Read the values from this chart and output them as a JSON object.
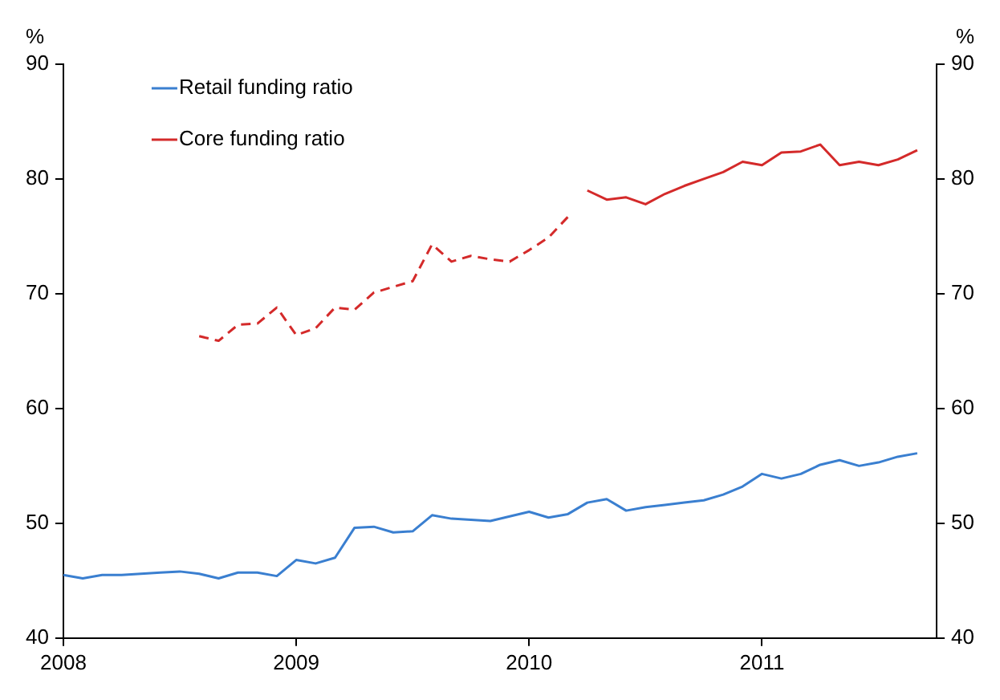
{
  "chart_data": {
    "type": "line",
    "ylabel": "%",
    "y2label": "%",
    "xlim": [
      "2008-01",
      "2011-10"
    ],
    "xticks": [
      "2008",
      "2009",
      "2010",
      "2011"
    ],
    "ylim": [
      40,
      90
    ],
    "yticks": [
      40,
      50,
      60,
      70,
      80,
      90
    ],
    "y2lim": [
      40,
      90
    ],
    "y2ticks": [
      40,
      50,
      60,
      70,
      80,
      90
    ],
    "grid": false,
    "legend": "top left",
    "marker": "none",
    "series": [
      {
        "name": "Retail funding ratio",
        "color": "#3a7fd0",
        "line_style": "solid",
        "x": [
          "2008-01",
          "2008-02",
          "2008-03",
          "2008-04",
          "2008-05",
          "2008-06",
          "2008-07",
          "2008-08",
          "2008-09",
          "2008-10",
          "2008-11",
          "2008-12",
          "2009-01",
          "2009-02",
          "2009-03",
          "2009-04",
          "2009-05",
          "2009-06",
          "2009-07",
          "2009-08",
          "2009-09",
          "2009-10",
          "2009-11",
          "2009-12",
          "2010-01",
          "2010-02",
          "2010-03",
          "2010-04",
          "2010-05",
          "2010-06",
          "2010-07",
          "2010-08",
          "2010-09",
          "2010-10",
          "2010-11",
          "2010-12",
          "2011-01",
          "2011-02",
          "2011-03",
          "2011-04",
          "2011-05",
          "2011-06",
          "2011-07",
          "2011-08",
          "2011-09"
        ],
        "values": [
          45.5,
          45.2,
          45.5,
          45.5,
          45.6,
          45.7,
          45.8,
          45.6,
          45.2,
          45.7,
          45.7,
          45.4,
          46.8,
          46.5,
          47.0,
          49.6,
          49.7,
          49.2,
          49.3,
          50.7,
          50.4,
          50.3,
          50.2,
          50.6,
          51.0,
          50.5,
          50.8,
          51.8,
          52.1,
          51.1,
          51.4,
          51.6,
          51.8,
          52.0,
          52.5,
          53.2,
          54.3,
          53.9,
          54.3,
          55.1,
          55.5,
          55.0,
          55.3,
          55.8,
          56.1
        ]
      },
      {
        "color": "#d42a2a",
        "line_style": "dashed",
        "x": [
          "2008-08",
          "2008-09",
          "2008-10",
          "2008-11",
          "2008-12",
          "2009-01",
          "2009-02",
          "2009-03",
          "2009-04",
          "2009-05",
          "2009-06",
          "2009-07",
          "2009-08",
          "2009-09",
          "2009-10",
          "2009-11",
          "2009-12",
          "2010-01",
          "2010-02",
          "2010-03"
        ],
        "values": [
          66.3,
          65.9,
          67.3,
          67.4,
          68.8,
          66.4,
          67.0,
          68.8,
          68.6,
          70.1,
          70.6,
          71.1,
          74.3,
          72.8,
          73.3,
          73.0,
          72.8,
          73.8,
          74.9,
          76.7
        ]
      },
      {
        "name": "Core funding ratio",
        "color": "#d42a2a",
        "line_style": "solid",
        "x": [
          "2010-04",
          "2010-05",
          "2010-06",
          "2010-07",
          "2010-08",
          "2010-09",
          "2010-10",
          "2010-11",
          "2010-12",
          "2011-01",
          "2011-02",
          "2011-03",
          "2011-04",
          "2011-05",
          "2011-06",
          "2011-07",
          "2011-08",
          "2011-09"
        ],
        "values": [
          79.0,
          78.2,
          78.4,
          77.8,
          78.7,
          79.4,
          80.0,
          80.6,
          81.5,
          81.2,
          82.3,
          82.4,
          83.0,
          81.2,
          81.5,
          81.2,
          81.7,
          82.5
        ]
      }
    ]
  }
}
